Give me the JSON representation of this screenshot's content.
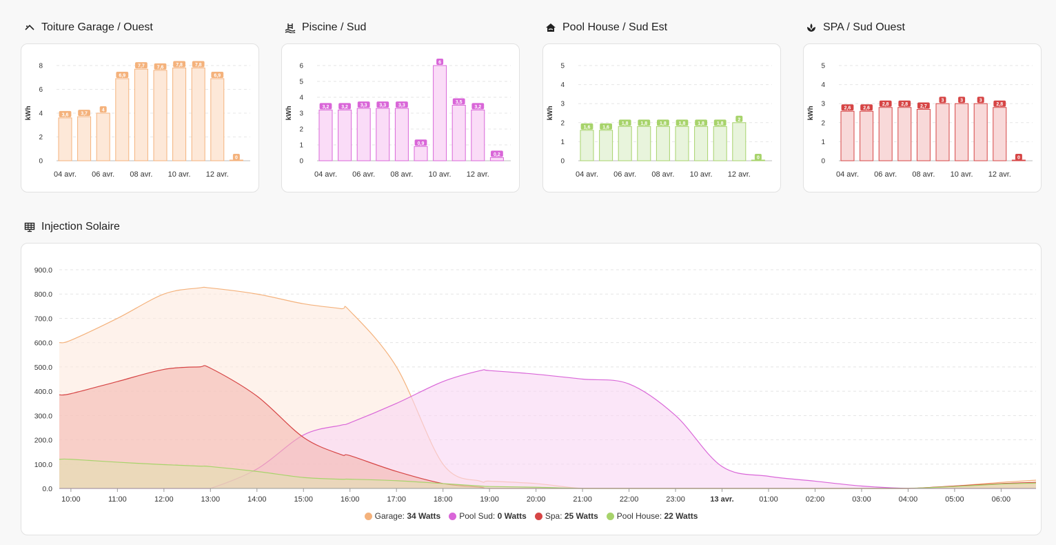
{
  "panels": [
    {
      "title": "Toiture Garage / Ouest",
      "icon": "roof-icon",
      "color": "#f4b27c",
      "fill": "#fde8d8",
      "ymax": 8,
      "yticks": [
        0,
        2,
        4,
        6,
        8
      ],
      "ylabel": "kWh",
      "values": [
        3.6,
        3.7,
        4,
        6.9,
        7.7,
        7.6,
        7.8,
        7.8,
        6.9,
        0
      ],
      "labels": [
        "3,6",
        "3,7",
        "4",
        "6,9",
        "7,7",
        "7,6",
        "7,8",
        "7,8",
        "6,9",
        "0"
      ],
      "xticks": [
        "04 avr.",
        "06 avr.",
        "08 avr.",
        "10 avr.",
        "12 avr."
      ]
    },
    {
      "title": "Piscine / Sud",
      "icon": "pool-icon",
      "color": "#d966d8",
      "fill": "#fadcf7",
      "ymax": 6,
      "yticks": [
        0,
        1,
        2,
        3,
        4,
        5,
        6
      ],
      "ylabel": "kWh",
      "values": [
        3.2,
        3.2,
        3.3,
        3.3,
        3.3,
        0.9,
        6,
        3.5,
        3.2,
        0.2
      ],
      "labels": [
        "3,2",
        "3,2",
        "3,3",
        "3,3",
        "3,3",
        "0,9",
        "6",
        "3,5",
        "3,2",
        "0,2"
      ],
      "xticks": [
        "04 avr.",
        "06 avr.",
        "08 avr.",
        "10 avr.",
        "12 avr."
      ]
    },
    {
      "title": "Pool House / Sud Est",
      "icon": "house-icon",
      "color": "#a7d36b",
      "fill": "#e8f4dc",
      "ymax": 5,
      "yticks": [
        0,
        1,
        2,
        3,
        4,
        5
      ],
      "ylabel": "kWh",
      "values": [
        1.6,
        1.6,
        1.8,
        1.8,
        1.8,
        1.8,
        1.8,
        1.8,
        2,
        0
      ],
      "labels": [
        "1,6",
        "1,6",
        "1,8",
        "1,8",
        "1,8",
        "1,8",
        "1,8",
        "1,8",
        "2",
        "0"
      ],
      "xticks": [
        "04 avr.",
        "06 avr.",
        "08 avr.",
        "10 avr.",
        "12 avr."
      ]
    },
    {
      "title": "SPA / Sud Ouest",
      "icon": "spa-icon",
      "color": "#d64545",
      "fill": "#f8d9d9",
      "ymax": 5,
      "yticks": [
        0,
        1,
        2,
        3,
        4,
        5
      ],
      "ylabel": "kWh",
      "values": [
        2.6,
        2.6,
        2.8,
        2.8,
        2.7,
        3,
        3,
        3,
        2.8,
        0
      ],
      "labels": [
        "2,6",
        "2,6",
        "2,8",
        "2,8",
        "2,7",
        "3",
        "3",
        "3",
        "2,8",
        "0"
      ],
      "xticks": [
        "04 avr.",
        "06 avr.",
        "08 avr.",
        "10 avr.",
        "12 avr."
      ]
    }
  ],
  "injection": {
    "title": "Injection Solaire",
    "icon": "solar-panel-icon",
    "ylim": [
      0,
      900
    ],
    "yticks": [
      "0.0",
      "100.0",
      "200.0",
      "300.0",
      "400.0",
      "500.0",
      "600.0",
      "700.0",
      "800.0",
      "900.0"
    ],
    "xticks": [
      "10:00",
      "11:00",
      "12:00",
      "13:00",
      "14:00",
      "15:00",
      "16:00",
      "17:00",
      "18:00",
      "19:00",
      "20:00",
      "21:00",
      "22:00",
      "23:00",
      "13 avr.",
      "01:00",
      "02:00",
      "03:00",
      "04:00",
      "05:00",
      "06:00"
    ],
    "bold_tick": "13 avr.",
    "legend": [
      {
        "name": "Garage",
        "value": "34 Watts",
        "color": "#f4b27c"
      },
      {
        "name": "Pool Sud",
        "value": "0 Watts",
        "color": "#d966d8"
      },
      {
        "name": "Spa",
        "value": "25 Watts",
        "color": "#d64545"
      },
      {
        "name": "Pool House",
        "value": "22 Watts",
        "color": "#a7d36b"
      }
    ]
  },
  "chart_data": {
    "type": "area",
    "title": "Injection Solaire",
    "x": [
      9.75,
      10,
      11,
      12,
      12.75,
      13,
      14,
      15,
      15.8,
      16,
      17,
      18,
      18.8,
      19,
      20,
      21,
      22,
      23,
      24,
      25,
      26,
      27,
      28,
      29,
      30,
      30.75
    ],
    "series": [
      {
        "name": "Garage",
        "color": "#f4b27c",
        "fill": "#fdeade",
        "values": [
          600,
          610,
          700,
          800,
          825,
          825,
          800,
          760,
          740,
          730,
          500,
          100,
          30,
          30,
          20,
          0,
          0,
          0,
          0,
          0,
          0,
          0,
          0,
          10,
          25,
          34
        ]
      },
      {
        "name": "Pool Sud",
        "color": "#d966d8",
        "fill": "#f9d6f3",
        "values": [
          0,
          0,
          0,
          0,
          0,
          0,
          80,
          220,
          260,
          270,
          350,
          440,
          485,
          485,
          470,
          450,
          430,
          300,
          90,
          50,
          30,
          10,
          0,
          0,
          0,
          0
        ]
      },
      {
        "name": "Spa",
        "color": "#d64545",
        "fill": "#f4b8b0",
        "values": [
          385,
          390,
          440,
          490,
          500,
          495,
          380,
          210,
          140,
          135,
          70,
          20,
          5,
          0,
          0,
          0,
          0,
          0,
          0,
          0,
          0,
          0,
          0,
          10,
          20,
          25
        ]
      },
      {
        "name": "Pool House",
        "color": "#a7d36b",
        "fill": "#e3e0b0",
        "values": [
          120,
          120,
          108,
          98,
          92,
          90,
          70,
          45,
          38,
          38,
          32,
          20,
          10,
          8,
          5,
          0,
          0,
          0,
          0,
          0,
          0,
          0,
          0,
          8,
          18,
          22
        ]
      }
    ],
    "xticks": [
      "10:00",
      "11:00",
      "12:00",
      "13:00",
      "14:00",
      "15:00",
      "16:00",
      "17:00",
      "18:00",
      "19:00",
      "20:00",
      "21:00",
      "22:00",
      "23:00",
      "13 avr.",
      "01:00",
      "02:00",
      "03:00",
      "04:00",
      "05:00",
      "06:00"
    ],
    "ylim": [
      0,
      900
    ],
    "grid": true,
    "legend_placement": "bottom"
  }
}
